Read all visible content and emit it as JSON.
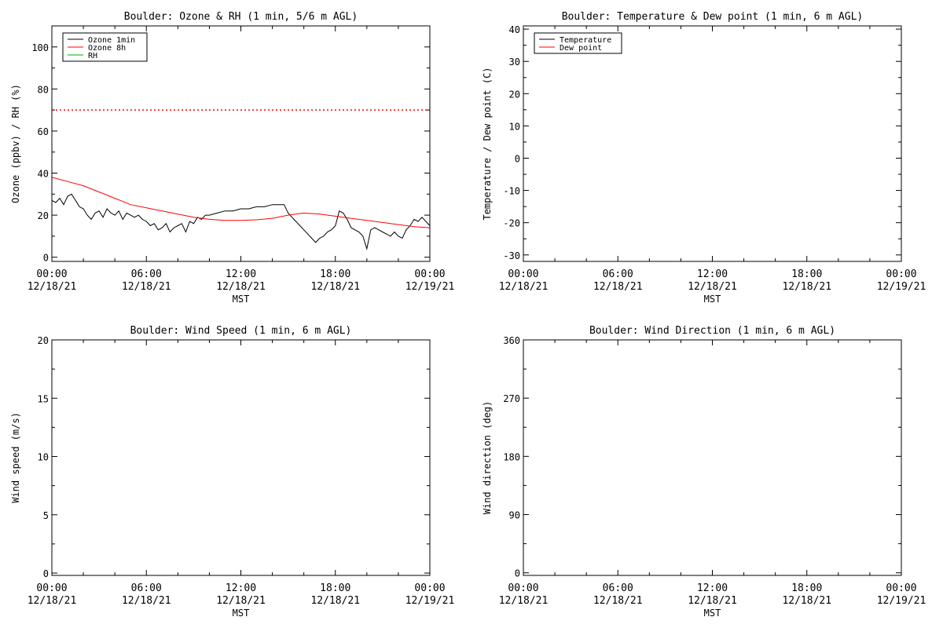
{
  "chart_data": [
    {
      "type": "line",
      "title": "Boulder: Ozone & RH (1 min, 5/6 m AGL)",
      "xlabel": "MST",
      "ylabel": "Ozone (ppbv) / RH (%)",
      "ylim": [
        -2,
        110
      ],
      "yticks": [
        0,
        20,
        40,
        60,
        80,
        100
      ],
      "ytick_labels": [
        "0",
        "20",
        "40",
        "60",
        "80",
        "100"
      ],
      "xlim": [
        0,
        24
      ],
      "xticks": [
        0,
        6,
        12,
        18,
        24
      ],
      "xtick_labels": [
        [
          "00:00",
          "12/18/21"
        ],
        [
          "06:00",
          "12/18/21"
        ],
        [
          "12:00",
          "12/18/21"
        ],
        [
          "18:00",
          "12/18/21"
        ],
        [
          "00:00",
          "12/19/21"
        ]
      ],
      "grid": false,
      "legend_position": "top-left",
      "reference_lines": [
        {
          "y": 70,
          "color": "#ff0000",
          "style": "dotted"
        }
      ],
      "series": [
        {
          "name": "Ozone 1min",
          "color": "#000000",
          "x": [
            0,
            0.25,
            0.5,
            0.75,
            1.0,
            1.25,
            1.5,
            1.75,
            2.0,
            2.25,
            2.5,
            2.75,
            3.0,
            3.25,
            3.5,
            3.75,
            4.0,
            4.25,
            4.5,
            4.75,
            5.0,
            5.25,
            5.5,
            5.75,
            6.0,
            6.25,
            6.5,
            6.75,
            7.0,
            7.25,
            7.5,
            7.75,
            8.0,
            8.25,
            8.5,
            8.75,
            9.0,
            9.25,
            9.5,
            9.75,
            10.0,
            10.5,
            11.0,
            11.5,
            12.0,
            12.5,
            13.0,
            13.5,
            14.0,
            14.5,
            14.75,
            15.0,
            15.25,
            15.5,
            15.75,
            16.0,
            16.25,
            16.5,
            16.75,
            17.0,
            17.25,
            17.5,
            17.75,
            18.0,
            18.25,
            18.5,
            18.75,
            19.0,
            19.25,
            19.5,
            19.75,
            20.0,
            20.25,
            20.5,
            20.75,
            21.0,
            21.25,
            21.5,
            21.75,
            22.0,
            22.25,
            22.5,
            22.75,
            23.0,
            23.25,
            23.5,
            23.75,
            24.0
          ],
          "values": [
            27,
            26,
            28,
            25,
            29,
            30,
            27,
            24,
            23,
            20,
            18,
            21,
            22,
            19,
            23,
            21,
            20,
            22,
            18,
            21,
            20,
            19,
            20,
            18,
            17,
            15,
            16,
            13,
            14,
            16,
            12,
            14,
            15,
            16,
            12,
            17,
            16,
            19,
            18,
            20,
            20,
            21,
            22,
            22,
            23,
            23,
            24,
            24,
            25,
            25,
            25,
            21,
            19,
            17,
            15,
            13,
            11,
            9,
            7,
            9,
            10,
            12,
            13,
            15,
            22,
            21,
            18,
            14,
            13,
            12,
            10,
            4,
            13,
            14,
            13,
            12,
            11,
            10,
            12,
            10,
            9,
            13,
            15,
            18,
            17,
            19,
            17,
            15
          ]
        },
        {
          "name": "Ozone 8h",
          "color": "#ff0000",
          "x": [
            0,
            1,
            2,
            3,
            4,
            5,
            6,
            7,
            8,
            9,
            10,
            11,
            12,
            13,
            14,
            15,
            16,
            17,
            18,
            19,
            20,
            21,
            22,
            23,
            24
          ],
          "values": [
            38,
            36,
            34,
            31,
            28,
            25,
            23.5,
            22,
            20.5,
            19,
            18,
            17.5,
            17.5,
            17.8,
            18.5,
            20,
            21,
            20.5,
            19.5,
            18.5,
            17.5,
            16.5,
            15.5,
            14.5,
            14
          ]
        },
        {
          "name": "RH",
          "color": "#00aa00",
          "x": [],
          "values": []
        }
      ]
    },
    {
      "type": "line",
      "title": "Boulder: Temperature & Dew point (1 min, 6 m AGL)",
      "xlabel": "MST",
      "ylabel": "Temperature / Dew point (C)",
      "ylim": [
        -32,
        41
      ],
      "yticks": [
        -30,
        -20,
        -10,
        0,
        10,
        20,
        30,
        40
      ],
      "ytick_labels": [
        "-30",
        "-20",
        "-10",
        "0",
        "10",
        "20",
        "30",
        "40"
      ],
      "xlim": [
        0,
        24
      ],
      "xticks": [
        0,
        6,
        12,
        18,
        24
      ],
      "xtick_labels": [
        [
          "00:00",
          "12/18/21"
        ],
        [
          "06:00",
          "12/18/21"
        ],
        [
          "12:00",
          "12/18/21"
        ],
        [
          "18:00",
          "12/18/21"
        ],
        [
          "00:00",
          "12/19/21"
        ]
      ],
      "grid": false,
      "legend_position": "top-left",
      "series": [
        {
          "name": "Temperature",
          "color": "#000000",
          "x": [],
          "values": []
        },
        {
          "name": "Dew point",
          "color": "#ff0000",
          "x": [],
          "values": []
        }
      ]
    },
    {
      "type": "line",
      "title": "Boulder: Wind Speed (1 min, 6 m AGL)",
      "xlabel": "MST",
      "ylabel": "Wind speed (m/s)",
      "ylim": [
        -0.2,
        20
      ],
      "yticks": [
        0,
        5,
        10,
        15,
        20
      ],
      "ytick_labels": [
        "0",
        "5",
        "10",
        "15",
        "20"
      ],
      "xlim": [
        0,
        24
      ],
      "xticks": [
        0,
        6,
        12,
        18,
        24
      ],
      "xtick_labels": [
        [
          "00:00",
          "12/18/21"
        ],
        [
          "06:00",
          "12/18/21"
        ],
        [
          "12:00",
          "12/18/21"
        ],
        [
          "18:00",
          "12/18/21"
        ],
        [
          "00:00",
          "12/19/21"
        ]
      ],
      "grid": false,
      "series": []
    },
    {
      "type": "line",
      "title": "Boulder: Wind Direction (1 min, 6 m AGL)",
      "xlabel": "MST",
      "ylabel": "Wind direction (deg)",
      "ylim": [
        -4,
        360
      ],
      "yticks": [
        0,
        90,
        180,
        270,
        360
      ],
      "ytick_labels": [
        "0",
        "90",
        "180",
        "270",
        "360"
      ],
      "xlim": [
        0,
        24
      ],
      "xticks": [
        0,
        6,
        12,
        18,
        24
      ],
      "xtick_labels": [
        [
          "00:00",
          "12/18/21"
        ],
        [
          "06:00",
          "12/18/21"
        ],
        [
          "12:00",
          "12/18/21"
        ],
        [
          "18:00",
          "12/18/21"
        ],
        [
          "00:00",
          "12/19/21"
        ]
      ],
      "grid": false,
      "series": []
    }
  ]
}
